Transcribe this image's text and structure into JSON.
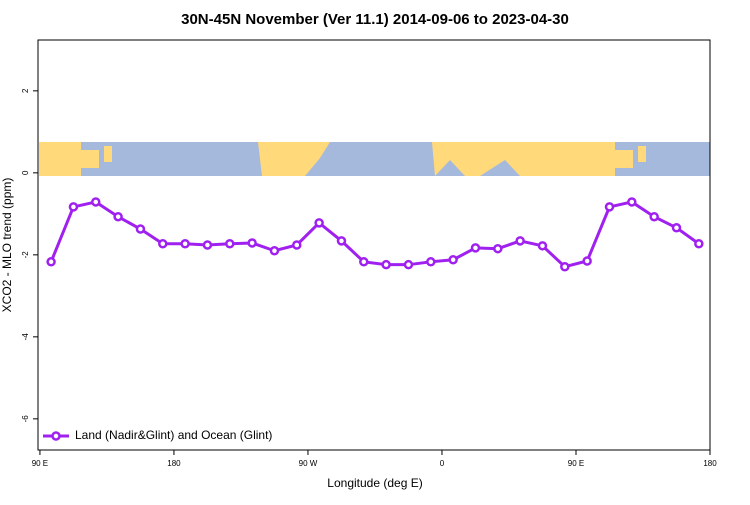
{
  "chart_data": {
    "type": "line",
    "title": "30N-45N November (Ver 11.1)   2014-09-06 to 2023-04-30",
    "x_label": "Longitude (deg E)",
    "y_label": "XCO2 - MLO trend (ppm)",
    "x": [
      97.5,
      112.5,
      127.5,
      142.5,
      157.5,
      172.5,
      187.5,
      202.5,
      217.5,
      232.5,
      247.5,
      262.5,
      277.5,
      292.5,
      307.5,
      322.5,
      337.5,
      352.5,
      367.5,
      382.5,
      397.5,
      412.5,
      427.5,
      442.5,
      457.5,
      472.5,
      487.5,
      502.5,
      517.5,
      532.5
    ],
    "series": [
      {
        "name": "Land (Nadir&Glint) and Ocean (Glint)",
        "color": "#a020f0",
        "values": [
          -2.17,
          -0.83,
          -0.71,
          -1.07,
          -1.37,
          -1.73,
          -1.73,
          -1.76,
          -1.73,
          -1.71,
          -1.9,
          -1.76,
          -1.22,
          -1.66,
          -2.17,
          -2.24,
          -2.24,
          -2.17,
          -2.12,
          -1.83,
          -1.85,
          -1.66,
          -1.78,
          -2.29,
          -2.15,
          -0.83,
          -0.71,
          -1.07,
          -1.34,
          -1.73
        ]
      }
    ],
    "xlim": [
      88.7,
      540
    ],
    "xticks": [
      {
        "value": 90,
        "label": "90 E"
      },
      {
        "value": 180,
        "label": "180"
      },
      {
        "value": 270,
        "label": "90 W"
      },
      {
        "value": 360,
        "label": "0"
      },
      {
        "value": 450,
        "label": "90 E"
      },
      {
        "value": 540,
        "label": "180"
      }
    ],
    "ylim": [
      -6.76,
      3.24
    ],
    "yticks": [
      2,
      0,
      -2,
      -4,
      -6
    ],
    "legend": "bottom-left"
  }
}
